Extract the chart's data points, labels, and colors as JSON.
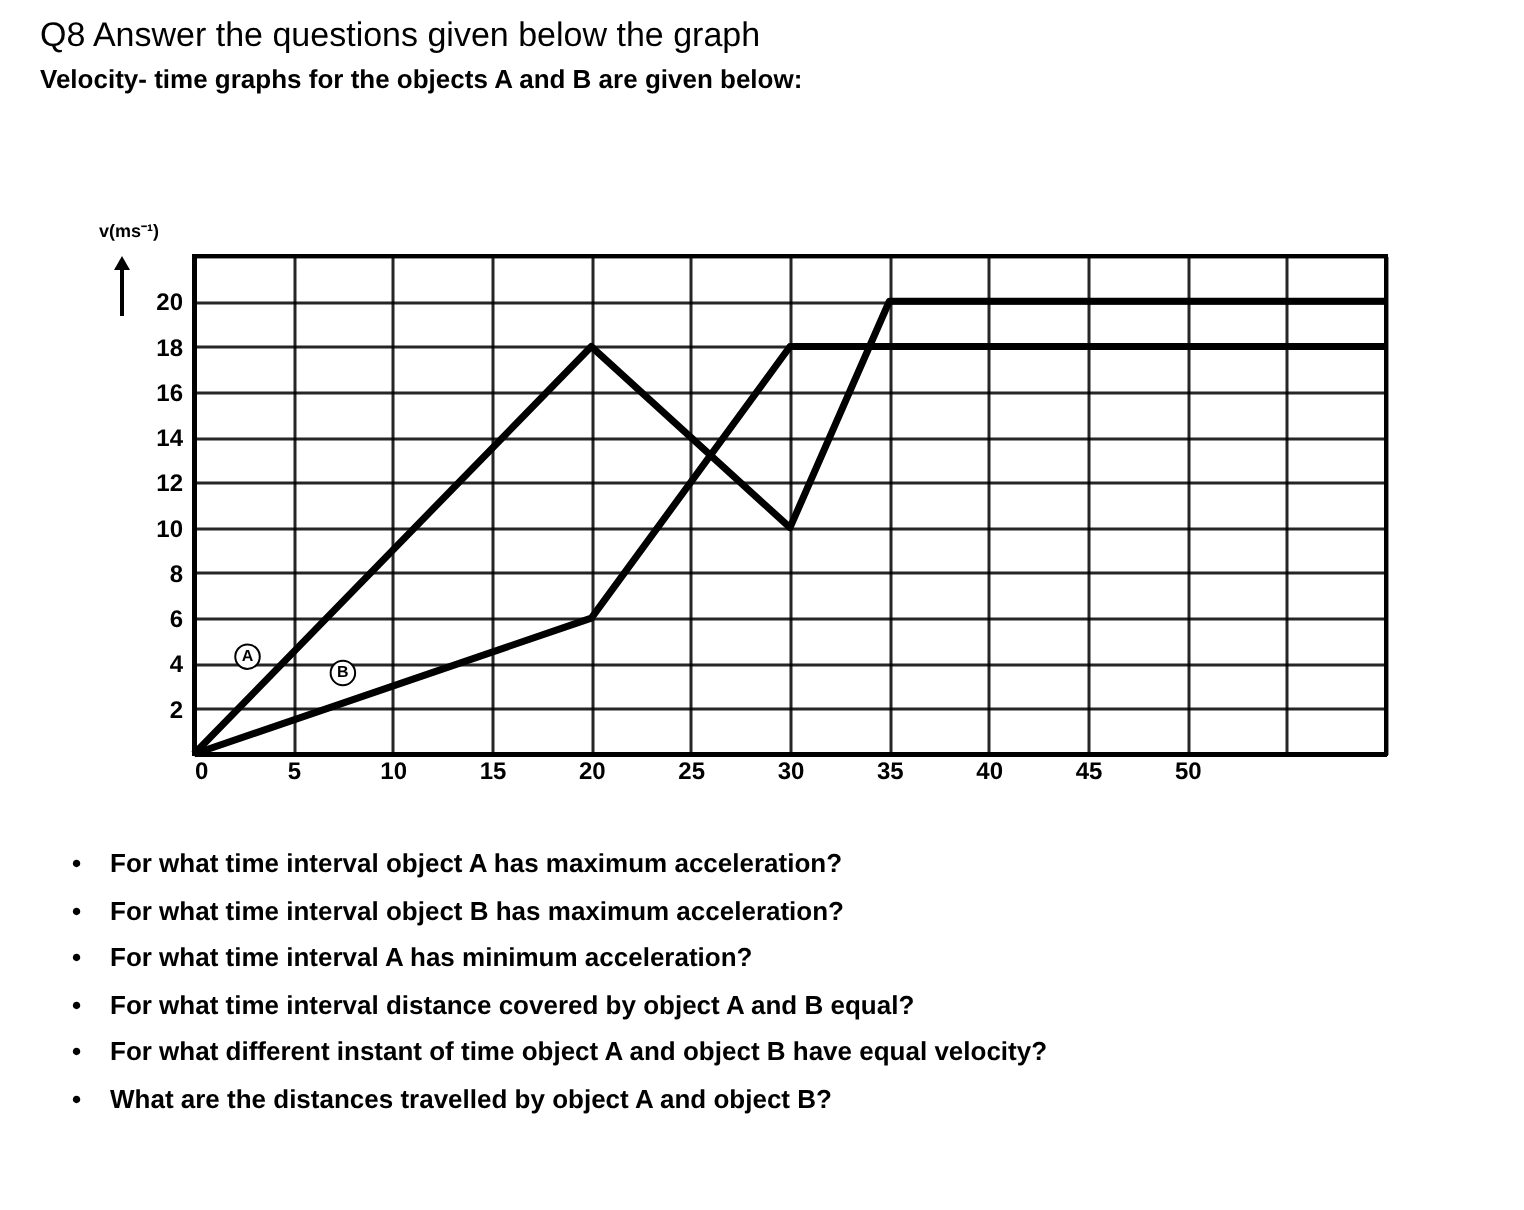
{
  "chart_data": {
    "type": "line",
    "title": "Q8 Answer the questions given below the graph",
    "subtitle": "Velocity- time graphs for the objects A and B are given below:",
    "ylabel": "v(ms⁻¹)",
    "series": [
      {
        "name": "A",
        "color": "#000000",
        "x": [
          0,
          20,
          30,
          35,
          60
        ],
        "values": [
          0,
          18,
          10,
          20,
          20
        ]
      },
      {
        "name": "B",
        "color": "#000000",
        "x": [
          0,
          20,
          30,
          60
        ],
        "values": [
          0,
          6,
          18,
          18
        ]
      }
    ],
    "xlim": [
      0,
      60
    ],
    "ylim": [
      0,
      22
    ],
    "xticks": [
      0,
      5,
      10,
      15,
      20,
      25,
      30,
      35,
      40,
      45,
      50,
      {
        "value": 55,
        "label": null
      },
      {
        "value": 60,
        "label": null
      }
    ],
    "yticks": [
      {
        "value": 0,
        "label": null
      },
      2,
      4,
      6,
      8,
      10,
      12,
      14,
      16,
      18,
      20,
      {
        "value": 22,
        "label": null
      }
    ],
    "grid": true,
    "marker": "none",
    "line_style": "solid",
    "legend": false,
    "annotations": [
      "• For what time interval object A has maximum acceleration?",
      "• For what time interval object B has maximum acceleration?",
      "• For what time interval A has minimum acceleration?",
      "• For what time interval distance covered by object A and B equal?",
      "• For what different instant of time object A and object B have equal velocity?",
      "• What are the distances travelled by object A and object B?"
    ]
  }
}
